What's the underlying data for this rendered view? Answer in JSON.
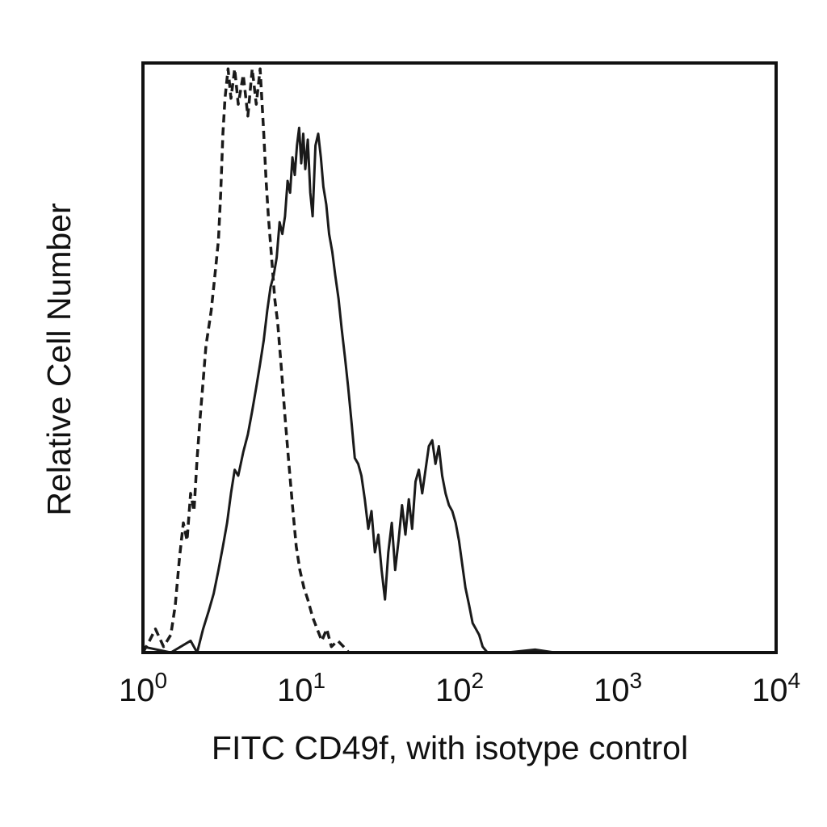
{
  "chart_data": {
    "type": "line",
    "title": "",
    "xlabel": "FITC CD49f, with isotype control",
    "ylabel": "Relative Cell Number",
    "x_scale": "log",
    "xlim": [
      1,
      10000
    ],
    "ylim": [
      0,
      100
    ],
    "grid": false,
    "legend": "none",
    "x_ticks": [
      {
        "base": "10",
        "exp": "0",
        "value": 1
      },
      {
        "base": "10",
        "exp": "1",
        "value": 10
      },
      {
        "base": "10",
        "exp": "2",
        "value": 100
      },
      {
        "base": "10",
        "exp": "3",
        "value": 1000
      },
      {
        "base": "10",
        "exp": "4",
        "value": 10000
      }
    ],
    "series": [
      {
        "style": "dashed",
        "color": "#1a1a1a",
        "points": [
          [
            1.0,
            0
          ],
          [
            1.1,
            2
          ],
          [
            1.2,
            4
          ],
          [
            1.35,
            1
          ],
          [
            1.5,
            3
          ],
          [
            1.6,
            8
          ],
          [
            1.7,
            16
          ],
          [
            1.8,
            22
          ],
          [
            1.9,
            19
          ],
          [
            2.0,
            27
          ],
          [
            2.1,
            24
          ],
          [
            2.2,
            33
          ],
          [
            2.3,
            40
          ],
          [
            2.4,
            46
          ],
          [
            2.5,
            52
          ],
          [
            2.6,
            55
          ],
          [
            2.7,
            58
          ],
          [
            2.8,
            62
          ],
          [
            2.9,
            66
          ],
          [
            3.0,
            70
          ],
          [
            3.1,
            78
          ],
          [
            3.2,
            88
          ],
          [
            3.3,
            94
          ],
          [
            3.45,
            99
          ],
          [
            3.6,
            94
          ],
          [
            3.8,
            99
          ],
          [
            4.0,
            93
          ],
          [
            4.3,
            98
          ],
          [
            4.6,
            91
          ],
          [
            4.9,
            99
          ],
          [
            5.2,
            93
          ],
          [
            5.5,
            99
          ],
          [
            5.8,
            88
          ],
          [
            6.0,
            80
          ],
          [
            6.2,
            74
          ],
          [
            6.5,
            67
          ],
          [
            6.8,
            60
          ],
          [
            7.1,
            56
          ],
          [
            7.5,
            48
          ],
          [
            7.9,
            40
          ],
          [
            8.3,
            33
          ],
          [
            8.8,
            25
          ],
          [
            9.3,
            18
          ],
          [
            9.8,
            14
          ],
          [
            10.4,
            11
          ],
          [
            11.0,
            9
          ],
          [
            11.8,
            6
          ],
          [
            12.6,
            4
          ],
          [
            13.5,
            2
          ],
          [
            14.5,
            4
          ],
          [
            15.5,
            1
          ],
          [
            17.0,
            2
          ],
          [
            18.5,
            1
          ],
          [
            20.0,
            0
          ]
        ]
      },
      {
        "style": "solid",
        "color": "#1a1a1a",
        "points": [
          [
            1.0,
            1
          ],
          [
            1.5,
            0
          ],
          [
            2.0,
            2
          ],
          [
            2.2,
            0
          ],
          [
            2.4,
            4
          ],
          [
            2.6,
            7
          ],
          [
            2.8,
            10
          ],
          [
            3.0,
            14
          ],
          [
            3.2,
            18
          ],
          [
            3.4,
            22
          ],
          [
            3.6,
            27
          ],
          [
            3.8,
            31
          ],
          [
            4.0,
            30
          ],
          [
            4.3,
            34
          ],
          [
            4.6,
            37
          ],
          [
            4.9,
            41
          ],
          [
            5.2,
            45
          ],
          [
            5.5,
            49
          ],
          [
            5.8,
            53
          ],
          [
            6.1,
            58
          ],
          [
            6.4,
            62
          ],
          [
            6.7,
            64
          ],
          [
            7.0,
            67
          ],
          [
            7.3,
            73
          ],
          [
            7.6,
            71
          ],
          [
            7.9,
            74
          ],
          [
            8.2,
            80
          ],
          [
            8.5,
            78
          ],
          [
            8.8,
            84
          ],
          [
            9.1,
            81
          ],
          [
            9.4,
            86
          ],
          [
            9.7,
            89
          ],
          [
            10.0,
            83
          ],
          [
            10.3,
            88
          ],
          [
            10.6,
            82
          ],
          [
            11.0,
            87
          ],
          [
            11.4,
            78
          ],
          [
            11.8,
            74
          ],
          [
            12.3,
            86
          ],
          [
            12.8,
            88
          ],
          [
            13.3,
            84
          ],
          [
            13.8,
            79
          ],
          [
            14.4,
            76
          ],
          [
            15.0,
            71
          ],
          [
            15.7,
            68
          ],
          [
            16.4,
            64
          ],
          [
            17.2,
            60
          ],
          [
            18.0,
            55
          ],
          [
            18.9,
            50
          ],
          [
            19.8,
            45
          ],
          [
            20.8,
            39
          ],
          [
            21.8,
            33
          ],
          [
            22.9,
            32
          ],
          [
            24.0,
            30
          ],
          [
            25.2,
            26
          ],
          [
            26.5,
            21
          ],
          [
            27.8,
            24
          ],
          [
            29.2,
            17
          ],
          [
            30.7,
            20
          ],
          [
            32.2,
            14
          ],
          [
            33.8,
            9
          ],
          [
            35.5,
            17
          ],
          [
            37.3,
            22
          ],
          [
            39.2,
            14
          ],
          [
            41.2,
            19
          ],
          [
            43.3,
            25
          ],
          [
            45.5,
            20
          ],
          [
            47.8,
            26
          ],
          [
            50.2,
            21
          ],
          [
            52.7,
            29
          ],
          [
            55.3,
            31
          ],
          [
            58.1,
            27
          ],
          [
            61.0,
            31
          ],
          [
            64.0,
            35
          ],
          [
            67.2,
            36
          ],
          [
            70.5,
            32
          ],
          [
            74.0,
            35
          ],
          [
            77.7,
            30
          ],
          [
            81.6,
            27
          ],
          [
            85.7,
            25
          ],
          [
            90.0,
            24
          ],
          [
            94.5,
            22
          ],
          [
            99.2,
            19
          ],
          [
            104,
            15
          ],
          [
            109,
            11
          ],
          [
            115,
            8
          ],
          [
            121,
            5
          ],
          [
            127,
            4
          ],
          [
            133,
            3
          ],
          [
            140,
            1
          ],
          [
            150,
            0
          ],
          [
            200,
            0
          ],
          [
            300,
            0.5
          ],
          [
            400,
            0
          ]
        ]
      }
    ]
  }
}
